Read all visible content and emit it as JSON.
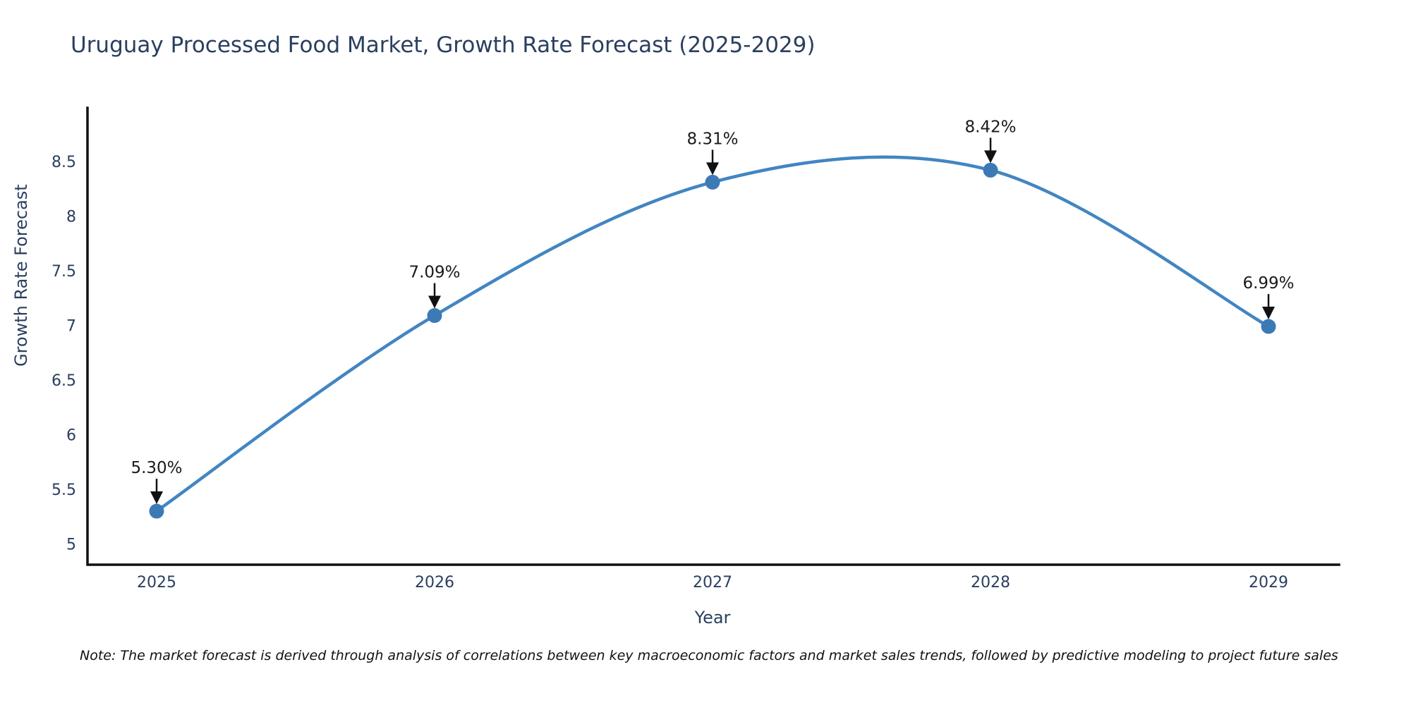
{
  "chart": {
    "title": "Uruguay Processed Food Market, Growth Rate Forecast (2025-2029)",
    "note": "Note: The market forecast is derived through analysis of correlations between key macroeconomic factors and market sales trends, followed by predictive modeling to project future sales",
    "colors": {
      "title_text": "#2a3f5f",
      "axis_text": "#2a3f5f",
      "axis_line": "#111111",
      "series_line": "#4285c2",
      "marker_fill": "#3c7ab6",
      "annotation_text": "#1a1a1a",
      "arrow": "#111111",
      "background": "#ffffff"
    }
  },
  "chart_data": {
    "type": "line",
    "line_shape": "spline",
    "marker": "circle",
    "grid": false,
    "legend_position": "none",
    "title": "Uruguay Processed Food Market, Growth Rate Forecast (2025-2029)",
    "xlabel": "Year",
    "ylabel": "Growth Rate Forecast",
    "categories": [
      "2025",
      "2026",
      "2027",
      "2028",
      "2029"
    ],
    "series": [
      {
        "name": "Growth Rate Forecast",
        "values": [
          5.3,
          7.09,
          8.31,
          8.42,
          6.99
        ]
      }
    ],
    "point_labels": [
      "5.30%",
      "7.09%",
      "8.31%",
      "8.42%",
      "6.99%"
    ],
    "annotation_arrows": true,
    "ylim": [
      4.81,
      8.99
    ],
    "yticks": [
      5,
      5.5,
      6,
      6.5,
      7,
      7.5,
      8,
      8.5
    ]
  }
}
